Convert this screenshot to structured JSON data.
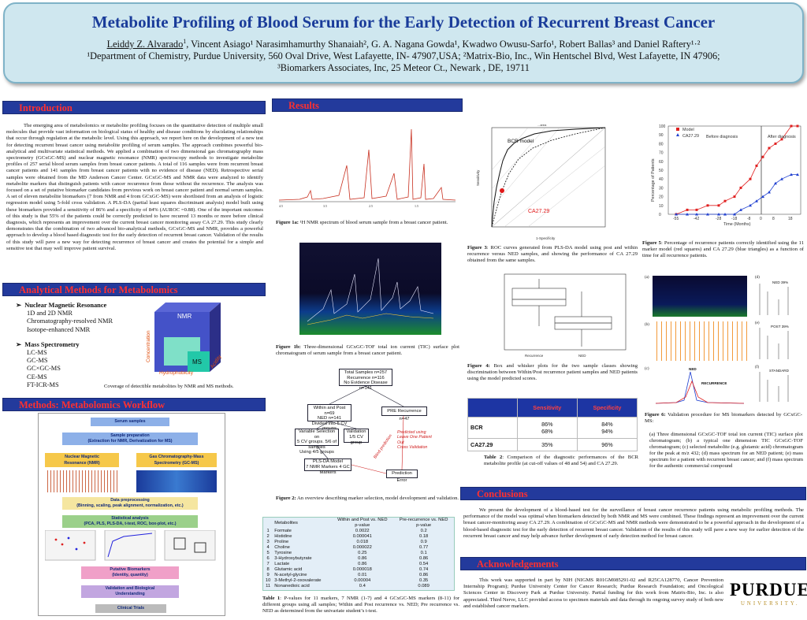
{
  "header": {
    "title": "Metabolite Profiling of Blood Serum for the Early Detection of Recurrent Breast Cancer",
    "author_first": "Leiddy Z. Alvarado",
    "author_first_sup": "1",
    "authors_rest": ", Vincent Asiago¹ Narasimhamurthy Shanaiah², G. A. Nagana Gowda¹, Kwadwo Owusu-Sarfo¹, Robert Ballas³ and Daniel Raftery¹·²",
    "affil_line1": "¹Department of Chemistry, Purdue University, 560 Oval Drive, West Lafayette, IN- 47907,USA; ²Matrix-Bio, Inc., Win Hentschel Blvd, West Lafayette, IN 47906;",
    "affil_line2": "³Biomarkers Associates, Inc, 25 Meteor Ct.,  Newark , DE, 19711"
  },
  "sections": {
    "introduction": "Introduction",
    "analytical": "Analytical Methods for Metabolomics",
    "workflow": "Methods: Metabolomics Workflow",
    "results": "Results",
    "conclusions": "Conclusions",
    "acknowledgements": "Acknowledgements"
  },
  "intro_text": "The emerging area of metabolomics or metabolite profiling focuses on the quantitative detection of multiple small molecules that provide vast information on biological status of healthy and disease conditions by elucidating relationships that occur through regulation at the metabolic level. Using this approach, we report here on the development of a new test for detecting recurrent breast cancer using metabolite profiling of serum samples. The approach combines powerful bio-analytical and multivariate statistical methods. We applied a combination of two dimensional gas chromatography mass spectrometry (GCxGC-MS) and nuclear magnetic resonance (NMR) spectroscopy methods to investigate metabolite profiles of 257 serial blood serum samples from breast cancer patients. A total of 116 samples were from recurrent breast cancer patients and 141 samples from breast cancer patients with no evidence of disease (NED). Retrospective serial samples were obtained from the MD Anderson Cancer Center. GCxGC-MS and NMR data were analyzed to identify metabolite markers that distinguish patients with cancer recurrence from those without the recurrence. The analysis was focused on a set of putative biomarker candidates from previous work on breast cancer patient and normal serum samples. A set of eleven metabolite biomarkers (7 from NMR and 4 from GCxGC-MS) were shortlisted from an analysis of logistic regression model using 5-fold cross validation. A PLS-DA (partial least squares discriminant analysis) model built using these biomarkers provided a sensitivity of 86% and a specificity of 84% (AUROC =0.88). One of the important outcomes of this study is that 55% of the patients could be correctly predicted to have recurred 13 months or more before clinical diagnosis, which represents an improvement over the current breast cancer monitoring assay CA 27.29. This study clearly demonstrates that the combination of two advanced bio-analytical methods, GCxGC-MS and NMR, provides a powerful approach to develop a blood based diagnostic test for the early detection of recurrent breast cancer. Validation of the results of this study will pave a new way for detecting recurrence of breast cancer and creates the potential for a simple and sensitive test that may well improve patient survival.",
  "analytical": {
    "nmr_head": "Nuclear Magnetic Resonance",
    "nmr_items": [
      "1D and 2D NMR",
      "Chromatography-resolved NMR",
      "Isotope-enhanced NMR"
    ],
    "ms_head": "Mass Spectrometry",
    "ms_items": [
      "LC-MS",
      "GC-MS",
      "GC×GC-MS",
      "CE-MS",
      "FT-ICR-MS"
    ],
    "cube_nmr": "NMR",
    "cube_ms": "MS",
    "cube_concentration": "Concentration",
    "cube_hydrophobicity": "Hydrophobicity",
    "cube_acidity": "Acidity",
    "coverage_caption": "Coverage of  detectible metabolites by NMR and MS methods."
  },
  "workflow": {
    "steps": [
      "Serum samples",
      "Sample preparation\n(Extraction for NMR, Derivatization for MS)",
      "Nuclear Magnetic\nResonance (NMR)",
      "Gas Chromatography-Mass\nSpectrometry (GC-MS)",
      "Data preprocessing\n(Binning, scaling, peak alignment, normalization, etc.)",
      "Statistical analysis\n(PCA, PLS, PLS-DA, t-test, ROC, box-plot, etc.)",
      "Putative Biomarkers\n(Identity, quantity)",
      "Validation and Biological\nUnderstanding",
      "Clinical Trials"
    ]
  },
  "fig1a_caption_b": "Figure 1a:",
  "fig1a_caption": " ¹H NMR spectrum of blood serum sample from a breast cancer patient.",
  "fig1b_caption_b": "Figure 1b:",
  "fig1b_caption": " Three-dimensional GCxGC-TOF total ion current (TIC) surface plot chromatogram of serum sample from a breast cancer patient.",
  "fig2": {
    "caption_b": "Figure 2:",
    "caption": " An overview describing marker selection, model development and validation.",
    "box1": "Total Samples  n=257\nRecurrence  n=116\nNo Evidence Disease  n=141",
    "box2": "Within and Post n=69\nNED n=141\nDivided into 5 CV groups",
    "box3": "PRE Recurrence n=47",
    "box4": "Variable Selection on\n5 CV groups. 5/6 of samples\nUsing 4/5 groups",
    "box5": "Validation\n1/5 CV group",
    "box6": "PLS-DA Model\n7 NMR Markers  4 GC Markers",
    "box7": "Prediction Error",
    "red_side": "Predicted using\nLeave One Patient Out\nCross Validation",
    "red_diag": "Blind prediction"
  },
  "table1": {
    "headers": [
      "",
      "Metabolites",
      "Within and Post vs. NED\np-value",
      "Pre-recurrence vs. NED\np-value"
    ],
    "rows": [
      [
        "1",
        "Formate",
        "0.0022",
        "0.2"
      ],
      [
        "2",
        "Histidine",
        "0.000041",
        "0.18"
      ],
      [
        "3",
        "Proline",
        "0.018",
        "0.9"
      ],
      [
        "4",
        "Choline",
        "0.000022",
        "0.77"
      ],
      [
        "5",
        "Tyrosine",
        "0.25",
        "0.1"
      ],
      [
        "6",
        "3-Hydroxybutyrate",
        "0.86",
        "0.86"
      ],
      [
        "7",
        "Lactate",
        "0.86",
        "0.54"
      ],
      [
        "8",
        "Glutamic acid",
        "0.000018",
        "0.74"
      ],
      [
        "9",
        "N-acetyl-glycine",
        "0.01",
        "0.86"
      ],
      [
        "10",
        "3-Methyl-2-oxovalerate",
        "0.00004",
        "0.35"
      ],
      [
        "11",
        "Nonanedioic acid",
        "0.4",
        "0.089"
      ]
    ],
    "caption_b": "Table 1",
    "caption": ": P-values for 11 markers, 7 NMR (1-7) and 4 GCxGC-MS markers (8-11) for different groups using all samples; Within and Post recurrence vs. NED; Pre recurrence vs. NED as determined from the univariate student’s t-test."
  },
  "fig3": {
    "caption_b": "Figure 3",
    "caption": ": ROC curves generated from PLS-DA model using post and within recurrence versus NED samples, and showing the performance of CA 27.29 obtained from the same samples.",
    "bcr_label": "BCR model",
    "ca_label": "CA27.29",
    "xlabel": "1-Specificity",
    "ylabel": "Sensitivity",
    "top_label": "...area"
  },
  "fig4": {
    "caption_b": "Figure 4:",
    "caption": " Box and whisker plots for the two sample classes showing discrimination between Within/Post recurrence patient samples and NED patients using the model predicted scores.",
    "cat1": "Recurrence",
    "cat2": "NED"
  },
  "table2": {
    "headers": [
      "",
      "Sensitivity",
      "Specificity"
    ],
    "rows": [
      [
        "BCR",
        "86%\n68%",
        "84%\n94%"
      ],
      [
        "CA27.29",
        "35%",
        "96%"
      ]
    ],
    "caption_b": "Table 2",
    "caption": ": Comparison of the diagnostic performances of the BCR metabolite profile (at cut-off values of 48 and 54) and CA 27.29."
  },
  "fig5": {
    "caption_b": "Figure 5",
    "caption": ": Percentage of recurrence patients correctly identified using the 11 marker model (red squares) and CA 27.29 (blue triangles) as a function of  time for all recurrence patients.",
    "legend_model": "Model",
    "legend_ca": "CA27.29",
    "before": "Before diagnosis",
    "after": "After diagnosis",
    "xlabel": "Time (Months)",
    "ylabel": "Percentage of Patients"
  },
  "fig6": {
    "caption_b": "Figure 6:",
    "caption": " Validation procedure for MS biomarkers detected by GCxGC-MS:",
    "detail": "(a) Three dimensional GCxGC-TOF total ion current (TIC) surface plot chromatogram; (b) a typical one dimension TIC GCxGC-TOF chromatogram;  (c) selected metabolite (e.g. glutamic acid) chromatogram for the peak at m/z 432; (d) mass spectrum for an NED patient; (e) mass spectrum for a patient with recurrent breast cancer;  and (f) mass spectrum for the authentic commercial compound",
    "labels": [
      "(a)",
      "(b)",
      "(c)",
      "(d)",
      "(e)",
      "(f)"
    ],
    "ned_label": "NED 39%",
    "post_label": "POST 39%",
    "ned2": "NED",
    "rec": "RECURRENCE",
    "std": "STANDARD"
  },
  "conclusions_text": "We present the development of a blood-based test for the surveillance of breast cancer recurrence patients using metabolic profiling methods. The performance of the model was optimal when biomarkers detected by both NMR and MS were combined. These findings represent an improvement over the current breast cancer-monitoring assay CA 27.29. A combination of GCxGC-MS and NMR methods were demonstrated to be a powerful approach in the development of a blood-based diagnostic test for the early detection of recurrent breast cancer. Validation of the results of this study will pave a new way for earlier detection of the recurrent breast cancer and may help advance further development of early detection method for breast cancer.",
  "ack_text": "This work was supported in part by NIH (NIGMS R01GM085291-02 and R25CA128770, Cancer Prevention Internship Program); Purdue University Center for Cancer Research; Purdue Research Foundation; and Oncological Sciences Center in Discovery Park at Purdue University. Partial funding for this work from Matrix-Bio, Inc. is also appreciated. Third Nerve, LLC provided access to specimen materials and data through its ongoing survey study of both new and established cancer markers.",
  "logo": {
    "word": "PURDUE",
    "sub": "UNIVERSITY."
  },
  "colors": {
    "section_bar": "#233a9c",
    "section_text": "#ff3030",
    "title": "#1a3c9a",
    "header_bg": "#cfe7ef"
  }
}
